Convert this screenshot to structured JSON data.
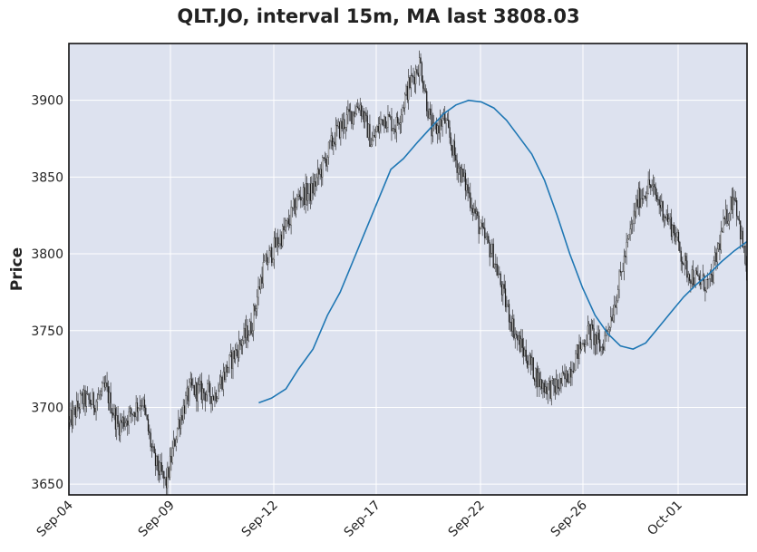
{
  "chart_data": {
    "type": "candlestick",
    "title": "QLT.JO, interval 15m, MA last 3808.03",
    "ylabel": "Price",
    "xlabel": "",
    "ylim": [
      3643,
      3937
    ],
    "y_ticks": [
      3650,
      3700,
      3750,
      3800,
      3850,
      3900
    ],
    "x_ticks": [
      "Sep-04",
      "Sep-09",
      "Sep-12",
      "Sep-17",
      "Sep-22",
      "Sep-26",
      "Oct-01"
    ],
    "grid": true,
    "price_color": "#1a1a1a",
    "ma_color": "#1f77b4",
    "plot_bg": "#dde2ef",
    "price_path": [
      [
        0,
        3690
      ],
      [
        1,
        3705
      ],
      [
        2,
        3703
      ],
      [
        3,
        3712
      ],
      [
        4,
        3688
      ],
      [
        5,
        3695
      ],
      [
        6,
        3705
      ],
      [
        7,
        3665
      ],
      [
        8,
        3650
      ],
      [
        9,
        3690
      ],
      [
        10,
        3712
      ],
      [
        11,
        3710
      ],
      [
        12,
        3708
      ],
      [
        13,
        3725
      ],
      [
        14,
        3740
      ],
      [
        15,
        3752
      ],
      [
        16,
        3790
      ],
      [
        17,
        3805
      ],
      [
        18,
        3818
      ],
      [
        19,
        3838
      ],
      [
        20,
        3840
      ],
      [
        21,
        3858
      ],
      [
        22,
        3878
      ],
      [
        23,
        3888
      ],
      [
        24,
        3898
      ],
      [
        25,
        3872
      ],
      [
        26,
        3890
      ],
      [
        27,
        3883
      ],
      [
        28,
        3908
      ],
      [
        29,
        3925
      ],
      [
        30,
        3878
      ],
      [
        31,
        3888
      ],
      [
        32,
        3860
      ],
      [
        33,
        3840
      ],
      [
        34,
        3815
      ],
      [
        35,
        3800
      ],
      [
        36,
        3770
      ],
      [
        37,
        3745
      ],
      [
        38,
        3730
      ],
      [
        39,
        3715
      ],
      [
        40,
        3712
      ],
      [
        41,
        3718
      ],
      [
        42,
        3735
      ],
      [
        43,
        3750
      ],
      [
        44,
        3738
      ],
      [
        45,
        3765
      ],
      [
        46,
        3800
      ],
      [
        47,
        3835
      ],
      [
        48,
        3845
      ],
      [
        49,
        3830
      ],
      [
        50,
        3815
      ],
      [
        51,
        3790
      ],
      [
        52,
        3782
      ],
      [
        53,
        3780
      ],
      [
        54,
        3815
      ],
      [
        55,
        3840
      ],
      [
        56,
        3790
      ]
    ],
    "price_idx_max": 56,
    "ma": [
      [
        10.5,
        3703
      ],
      [
        11.2,
        3706
      ],
      [
        12,
        3712
      ],
      [
        12.7,
        3725
      ],
      [
        13.5,
        3738
      ],
      [
        14.3,
        3760
      ],
      [
        15,
        3775
      ],
      [
        15.7,
        3795
      ],
      [
        16.4,
        3815
      ],
      [
        17.1,
        3835
      ],
      [
        17.8,
        3855
      ],
      [
        18.5,
        3862
      ],
      [
        19.3,
        3873
      ],
      [
        20,
        3882
      ],
      [
        20.7,
        3891
      ],
      [
        21.4,
        3897
      ],
      [
        22.1,
        3900
      ],
      [
        22.8,
        3899
      ],
      [
        23.5,
        3895
      ],
      [
        24.2,
        3887
      ],
      [
        24.9,
        3876
      ],
      [
        25.6,
        3865
      ],
      [
        26.3,
        3848
      ],
      [
        27,
        3825
      ],
      [
        27.7,
        3800
      ],
      [
        28.4,
        3778
      ],
      [
        29.1,
        3760
      ],
      [
        29.8,
        3748
      ],
      [
        30.5,
        3740
      ],
      [
        31.2,
        3738
      ],
      [
        31.9,
        3742
      ],
      [
        32.6,
        3752
      ],
      [
        33.3,
        3762
      ],
      [
        34,
        3772
      ],
      [
        34.7,
        3780
      ],
      [
        35.4,
        3787
      ],
      [
        36.1,
        3795
      ],
      [
        36.8,
        3802
      ],
      [
        37.5,
        3808
      ]
    ],
    "ma_idx_max": 37.5
  }
}
